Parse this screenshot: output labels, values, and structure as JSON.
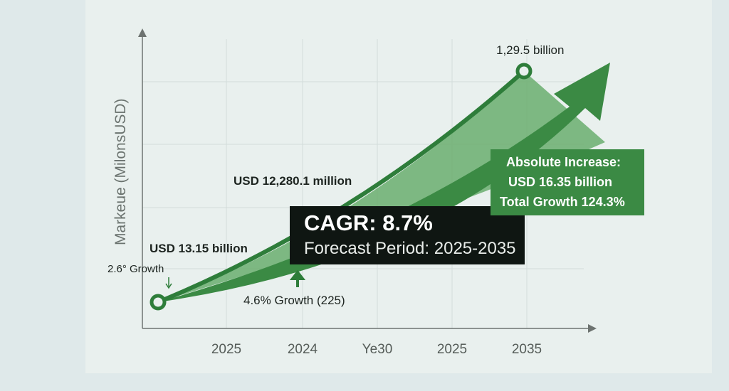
{
  "chart_data": {
    "type": "line",
    "title": "",
    "ylabel": "Markeue (MilonsUSD)",
    "xlabel": "",
    "categories": [
      "2025",
      "2024",
      "Ye30",
      "2025",
      "2035"
    ],
    "grid": true,
    "series": [
      {
        "points": [
          {
            "label": "USD 13.15 billion"
          },
          {
            "label": "1,29.5 billion"
          }
        ]
      }
    ],
    "annotations": {
      "start_value": "USD 13.15 billion",
      "mid_value": "USD 12,280.1 million",
      "end_value": "1,29.5 billion",
      "start_growth": "2.6° Growth",
      "mid_growth": "4.6% Growth (225)",
      "cagr": "CAGR: 8.7%",
      "forecast_period": "Forecast Period: 2025-2035",
      "absolute_title": "Absolute Increase:",
      "absolute_value": "USD 16.35 billion",
      "total_growth": "Total Growth 124.3%"
    },
    "colors": {
      "line": "#2e7d3a",
      "fill_light": "#6aae6f",
      "arrow": "#3b8a44",
      "box_dark": "#0f1612"
    }
  }
}
